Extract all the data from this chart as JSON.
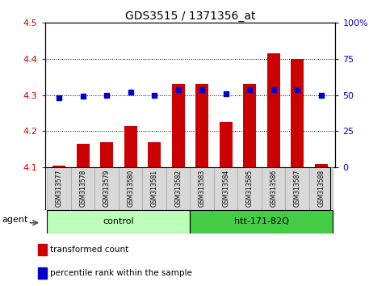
{
  "title": "GDS3515 / 1371356_at",
  "samples": [
    "GSM313577",
    "GSM313578",
    "GSM313579",
    "GSM313580",
    "GSM313581",
    "GSM313582",
    "GSM313583",
    "GSM313584",
    "GSM313585",
    "GSM313586",
    "GSM313587",
    "GSM313588"
  ],
  "transformed_count": [
    4.105,
    4.165,
    4.17,
    4.215,
    4.17,
    4.33,
    4.33,
    4.225,
    4.33,
    4.415,
    4.4,
    4.11
  ],
  "percentile_rank": [
    48,
    49,
    50,
    52,
    50,
    54,
    54,
    51,
    54,
    54,
    54,
    50
  ],
  "bar_color": "#cc0000",
  "dot_color": "#0000cc",
  "ylim_left": [
    4.1,
    4.5
  ],
  "ylim_right": [
    0,
    100
  ],
  "yticks_left": [
    4.1,
    4.2,
    4.3,
    4.4,
    4.5
  ],
  "yticks_right": [
    0,
    25,
    50,
    75,
    100
  ],
  "ylabel_right_labels": [
    "0",
    "25",
    "50",
    "75",
    "100%"
  ],
  "groups": [
    {
      "label": "control",
      "start": 0,
      "end": 6,
      "color": "#bbffbb"
    },
    {
      "label": "htt-171-82Q",
      "start": 6,
      "end": 12,
      "color": "#44cc44"
    }
  ],
  "agent_label": "agent",
  "bar_color_legend": "#cc0000",
  "dot_color_legend": "#0000cc",
  "tick_label_color_left": "#cc0000",
  "tick_label_color_right": "#0000cc",
  "legend_items": [
    {
      "label": "transformed count",
      "color": "#cc0000"
    },
    {
      "label": "percentile rank within the sample",
      "color": "#0000cc"
    }
  ],
  "bar_width": 0.55,
  "base_value": 4.1,
  "sample_box_color": "#d8d8d8",
  "bg_color": "#ffffff"
}
